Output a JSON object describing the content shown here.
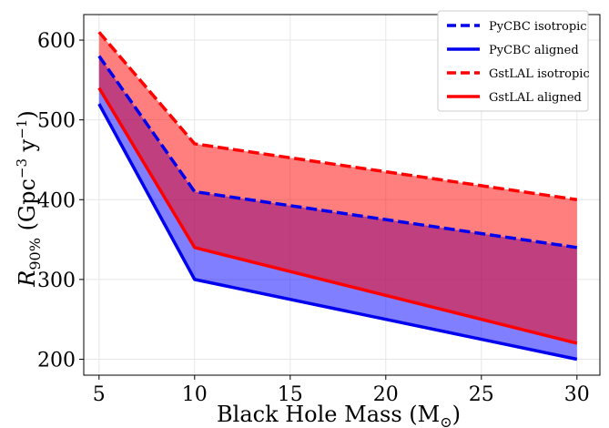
{
  "chart_data": {
    "type": "line",
    "x": [
      5,
      10,
      30
    ],
    "xlabel": "Black Hole Mass (M",
    "xlabel_sub": "⊙",
    "xlabel_close": ")",
    "ylabel_main": "R",
    "ylabel_sub": "90%",
    "ylabel_units": " (Gpc",
    "ylabel_exp1": "−3",
    "ylabel_mid": " y",
    "ylabel_exp2": "−1",
    "ylabel_close": ")",
    "xlim": [
      4.2,
      31.2
    ],
    "ylim": [
      180,
      632
    ],
    "xticks": [
      5,
      10,
      15,
      20,
      25,
      30
    ],
    "yticks": [
      200,
      300,
      400,
      500,
      600
    ],
    "grid": true,
    "legend_position": "top-right",
    "series": [
      {
        "name": "PyCBC isotropic",
        "values": [
          580,
          410,
          340
        ],
        "color": "#0000ee",
        "style": "dashed"
      },
      {
        "name": "PyCBC aligned",
        "values": [
          520,
          300,
          200
        ],
        "color": "#0000ee",
        "style": "solid"
      },
      {
        "name": "GstLAL isotropic",
        "values": [
          610,
          470,
          400
        ],
        "color": "#ff0000",
        "style": "dashed"
      },
      {
        "name": "GstLAL aligned",
        "values": [
          540,
          340,
          220
        ],
        "color": "#ff0000",
        "style": "solid"
      }
    ],
    "fills": [
      {
        "between": [
          "PyCBC isotropic",
          "PyCBC aligned"
        ],
        "color": "#0000ff",
        "opacity": 0.5
      },
      {
        "between": [
          "GstLAL isotropic",
          "GstLAL aligned"
        ],
        "color": "#ff0000",
        "opacity": 0.5
      }
    ]
  }
}
